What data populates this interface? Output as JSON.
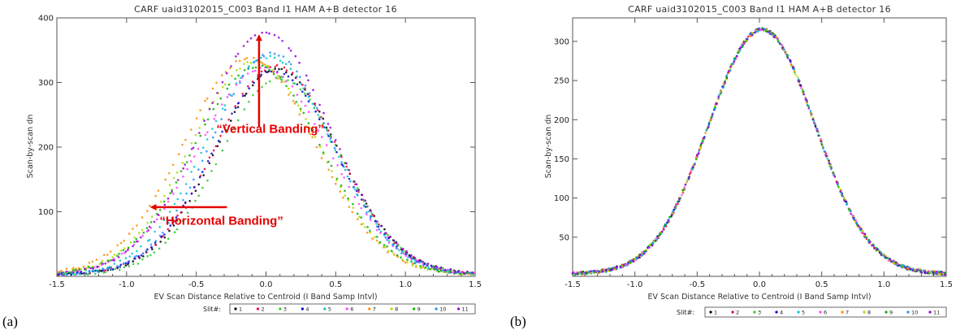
{
  "panel_a_letter": "(a)",
  "panel_b_letter": "(b)",
  "chart_data": [
    {
      "type": "scatter",
      "title": "CARF uaid3102015_C003 Band I1 HAM A+B   detector 16",
      "xlabel": "EV Scan Distance Relative to Centroid (I Band Samp Intvl)",
      "ylabel": "Scan-by-scan dn",
      "xlim": [
        -1.5,
        1.5
      ],
      "ylim": [
        0,
        400
      ],
      "xticks": [
        -1.5,
        -1.0,
        -0.5,
        0.0,
        0.5,
        1.0,
        1.5
      ],
      "xtick_labels": [
        "-1.5",
        "-1.0",
        "-0.5",
        "0.0",
        "0.5",
        "1.0",
        "1.5"
      ],
      "yticks": [
        100,
        200,
        300,
        400
      ],
      "ytick_labels": [
        "100",
        "200",
        "300",
        "400"
      ],
      "legend_title": "Slit#:",
      "legend_position": "bottom",
      "series": [
        {
          "name": "1",
          "color": "#000000",
          "peak": 320,
          "center": 0.08,
          "width": 0.44
        },
        {
          "name": "2",
          "color": "#e8003c",
          "peak": 325,
          "center": 0.07,
          "width": 0.44
        },
        {
          "name": "3",
          "color": "#2ec82e",
          "peak": 308,
          "center": 0.1,
          "width": 0.43
        },
        {
          "name": "4",
          "color": "#0000dd",
          "peak": 318,
          "center": 0.06,
          "width": 0.44
        },
        {
          "name": "5",
          "color": "#00c8c8",
          "peak": 340,
          "center": 0.02,
          "width": 0.45
        },
        {
          "name": "6",
          "color": "#ff40ff",
          "peak": 322,
          "center": -0.02,
          "width": 0.47
        },
        {
          "name": "7",
          "color": "#ff8c00",
          "peak": 338,
          "center": -0.12,
          "width": 0.47
        },
        {
          "name": "8",
          "color": "#b5d800",
          "peak": 332,
          "center": -0.08,
          "width": 0.46
        },
        {
          "name": "9",
          "color": "#00b400",
          "peak": 325,
          "center": -0.06,
          "width": 0.46
        },
        {
          "name": "10",
          "color": "#1e90ff",
          "peak": 345,
          "center": 0.04,
          "width": 0.43
        },
        {
          "name": "11",
          "color": "#9400d3",
          "peak": 378,
          "center": 0.0,
          "width": 0.46
        }
      ],
      "annotations": [
        {
          "text": "“Vertical Banding”",
          "x": 0.03,
          "y": 222
        },
        {
          "text": "“Horizontal Banding”",
          "x": -0.32,
          "y": 80
        }
      ]
    },
    {
      "type": "scatter",
      "title": "CARF uaid3102015_C003 Band I1 HAM A+B   detector 16",
      "xlabel": "EV Scan Distance Relative to Centroid (I Band Samp Intvl)",
      "ylabel": "Scan-by-scan dn",
      "xlim": [
        -1.5,
        1.5
      ],
      "ylim": [
        0,
        330
      ],
      "xticks": [
        -1.5,
        -1.0,
        -0.5,
        0.0,
        0.5,
        1.0,
        1.5
      ],
      "xtick_labels": [
        "-1.5",
        "-1.0",
        "-0.5",
        "0.0",
        "0.5",
        "1.0",
        "1.5"
      ],
      "yticks": [
        50,
        100,
        150,
        200,
        250,
        300
      ],
      "ytick_labels": [
        "50",
        "100",
        "150",
        "200",
        "250",
        "300"
      ],
      "legend_title": "Slit#:",
      "legend_position": "bottom",
      "series": [
        {
          "name": "1",
          "color": "#000000",
          "peak": 315,
          "center": 0.02,
          "width": 0.43
        },
        {
          "name": "2",
          "color": "#e8003c",
          "peak": 315,
          "center": 0.02,
          "width": 0.43
        },
        {
          "name": "3",
          "color": "#2ec82e",
          "peak": 315,
          "center": 0.02,
          "width": 0.43
        },
        {
          "name": "4",
          "color": "#0000dd",
          "peak": 315,
          "center": 0.02,
          "width": 0.43
        },
        {
          "name": "5",
          "color": "#00c8c8",
          "peak": 315,
          "center": 0.02,
          "width": 0.43
        },
        {
          "name": "6",
          "color": "#ff40ff",
          "peak": 315,
          "center": 0.02,
          "width": 0.43
        },
        {
          "name": "7",
          "color": "#ff8c00",
          "peak": 315,
          "center": 0.02,
          "width": 0.43
        },
        {
          "name": "8",
          "color": "#b5d800",
          "peak": 315,
          "center": 0.02,
          "width": 0.43
        },
        {
          "name": "9",
          "color": "#00b400",
          "peak": 315,
          "center": 0.02,
          "width": 0.43
        },
        {
          "name": "10",
          "color": "#1e90ff",
          "peak": 315,
          "center": 0.02,
          "width": 0.43
        },
        {
          "name": "11",
          "color": "#9400d3",
          "peak": 315,
          "center": 0.02,
          "width": 0.43
        }
      ]
    }
  ]
}
